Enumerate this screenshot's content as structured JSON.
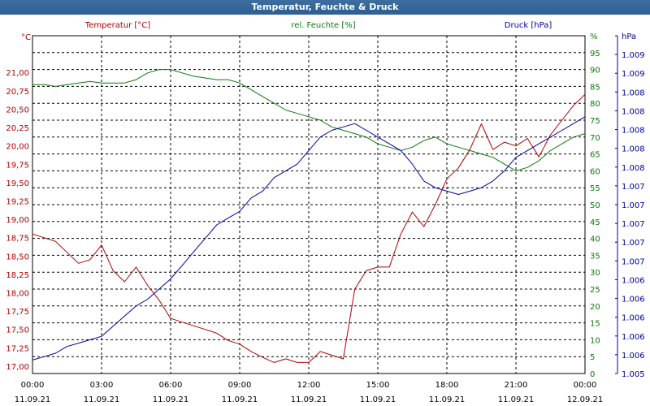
{
  "window": {
    "title": "Temperatur, Feuchte & Druck"
  },
  "colors": {
    "temperature": "#b00000",
    "humidity": "#0a7a0a",
    "pressure": "#0000a0",
    "grid": "#000000"
  },
  "chart_data": {
    "type": "line",
    "title": "Temperatur, Feuchte & Druck",
    "grid": true,
    "x_ticks": [
      {
        "time": "00:00",
        "date": "11.09.21"
      },
      {
        "time": "03:00",
        "date": "11.09.21"
      },
      {
        "time": "06:00",
        "date": "11.09.21"
      },
      {
        "time": "09:00",
        "date": "11.09.21"
      },
      {
        "time": "12:00",
        "date": "11.09.21"
      },
      {
        "time": "15:00",
        "date": "11.09.21"
      },
      {
        "time": "18:00",
        "date": "11.09.21"
      },
      {
        "time": "21:00",
        "date": "11.09.21"
      },
      {
        "time": "00:00",
        "date": "12.09.21"
      }
    ],
    "x_hours": [
      0,
      0.5,
      1,
      1.5,
      2,
      2.5,
      3,
      3.5,
      4,
      4.5,
      5,
      5.5,
      6,
      6.5,
      7,
      7.5,
      8,
      8.5,
      9,
      9.5,
      10,
      10.5,
      11,
      11.5,
      12,
      12.5,
      13,
      13.5,
      14,
      14.5,
      15,
      15.5,
      16,
      16.5,
      17,
      17.5,
      18,
      18.5,
      19,
      19.5,
      20,
      20.5,
      21,
      21.5,
      22,
      22.5,
      23,
      23.5,
      24
    ],
    "axes": {
      "temperature": {
        "label": "Temperatur [°C]",
        "unit": "°C",
        "ylim": [
          16.9,
          21.5
        ],
        "ticks": [
          {
            "v": 17.0,
            "t": "17,00"
          },
          {
            "v": 17.25,
            "t": "17,25"
          },
          {
            "v": 17.5,
            "t": "17,50"
          },
          {
            "v": 17.75,
            "t": "17,75"
          },
          {
            "v": 18.0,
            "t": "18,00"
          },
          {
            "v": 18.25,
            "t": "18,25"
          },
          {
            "v": 18.5,
            "t": "18,50"
          },
          {
            "v": 18.75,
            "t": "18,75"
          },
          {
            "v": 19.0,
            "t": "19,00"
          },
          {
            "v": 19.25,
            "t": "19,25"
          },
          {
            "v": 19.5,
            "t": "19,50"
          },
          {
            "v": 19.75,
            "t": "19,75"
          },
          {
            "v": 20.0,
            "t": "20,00"
          },
          {
            "v": 20.25,
            "t": "20,25"
          },
          {
            "v": 20.5,
            "t": "20,50"
          },
          {
            "v": 20.75,
            "t": "20,75"
          },
          {
            "v": 21.0,
            "t": "21,00"
          }
        ]
      },
      "humidity": {
        "label": "rel. Feuchte [%]",
        "unit": "%",
        "ylim": [
          0,
          100
        ],
        "ticks": [
          {
            "v": 0,
            "t": "0"
          },
          {
            "v": 5,
            "t": "5"
          },
          {
            "v": 10,
            "t": "10"
          },
          {
            "v": 15,
            "t": "15"
          },
          {
            "v": 20,
            "t": "20"
          },
          {
            "v": 25,
            "t": "25"
          },
          {
            "v": 30,
            "t": "30"
          },
          {
            "v": 35,
            "t": "35"
          },
          {
            "v": 40,
            "t": "40"
          },
          {
            "v": 45,
            "t": "45"
          },
          {
            "v": 50,
            "t": "50"
          },
          {
            "v": 55,
            "t": "55"
          },
          {
            "v": 60,
            "t": "60"
          },
          {
            "v": 65,
            "t": "65"
          },
          {
            "v": 70,
            "t": "70"
          },
          {
            "v": 75,
            "t": "75"
          },
          {
            "v": 80,
            "t": "80"
          },
          {
            "v": 85,
            "t": "85"
          },
          {
            "v": 90,
            "t": "90"
          },
          {
            "v": 95,
            "t": "95"
          },
          {
            "v": 100,
            "t": "%"
          }
        ]
      },
      "pressure": {
        "label": "Druck [hPa]",
        "unit": "hPa",
        "ylim": [
          0,
          1
        ],
        "ticks": [
          {
            "v": 0.0,
            "t": "1.005"
          },
          {
            "v": 0.0556,
            "t": "1.006"
          },
          {
            "v": 0.1111,
            "t": "1.006"
          },
          {
            "v": 0.1667,
            "t": "1.006"
          },
          {
            "v": 0.2222,
            "t": "1.006"
          },
          {
            "v": 0.2778,
            "t": "1.006"
          },
          {
            "v": 0.3333,
            "t": "1.007"
          },
          {
            "v": 0.3889,
            "t": "1.007"
          },
          {
            "v": 0.4444,
            "t": "1.007"
          },
          {
            "v": 0.5,
            "t": "1.007"
          },
          {
            "v": 0.5556,
            "t": "1.007"
          },
          {
            "v": 0.6111,
            "t": "1.008"
          },
          {
            "v": 0.6667,
            "t": "1.008"
          },
          {
            "v": 0.7222,
            "t": "1.008"
          },
          {
            "v": 0.7778,
            "t": "1.008"
          },
          {
            "v": 0.8333,
            "t": "1.008"
          },
          {
            "v": 0.8889,
            "t": "1.009"
          },
          {
            "v": 0.9444,
            "t": "1.009"
          },
          {
            "v": 1.0,
            "t": "hPa"
          }
        ]
      }
    },
    "series": [
      {
        "name": "Temperatur [°C]",
        "axis": "temperature",
        "color": "#b00000",
        "values": [
          18.8,
          18.75,
          18.7,
          18.55,
          18.4,
          18.45,
          18.65,
          18.3,
          18.15,
          18.35,
          18.1,
          17.9,
          17.65,
          17.6,
          17.55,
          17.5,
          17.45,
          17.35,
          17.3,
          17.2,
          17.12,
          17.05,
          17.1,
          17.05,
          17.05,
          17.2,
          17.15,
          17.1,
          18.05,
          18.3,
          18.35,
          18.35,
          18.8,
          19.1,
          18.9,
          19.2,
          19.55,
          19.7,
          19.95,
          20.3,
          19.95,
          20.05,
          20.0,
          20.1,
          19.85,
          20.15,
          20.35,
          20.55,
          20.7
        ]
      },
      {
        "name": "rel. Feuchte [%]",
        "axis": "humidity",
        "color": "#0a7a0a",
        "values": [
          85.5,
          85.5,
          85,
          85.5,
          86,
          86.5,
          86,
          86,
          86,
          87,
          89,
          90,
          90,
          89,
          88,
          87.5,
          87,
          87,
          86,
          84,
          82,
          80,
          78,
          77,
          76,
          75,
          73,
          72,
          71,
          70,
          68,
          67,
          66,
          67,
          69,
          70,
          68,
          67,
          66,
          65,
          64,
          62,
          60,
          61,
          63,
          66,
          68,
          70,
          71
        ]
      },
      {
        "name": "Druck [hPa]",
        "axis": "pressure",
        "color": "#0000a0",
        "values": [
          0.04,
          0.05,
          0.06,
          0.08,
          0.09,
          0.1,
          0.11,
          0.14,
          0.17,
          0.2,
          0.22,
          0.25,
          0.28,
          0.32,
          0.36,
          0.4,
          0.44,
          0.46,
          0.48,
          0.52,
          0.54,
          0.58,
          0.6,
          0.62,
          0.66,
          0.7,
          0.72,
          0.73,
          0.74,
          0.72,
          0.7,
          0.68,
          0.66,
          0.62,
          0.57,
          0.55,
          0.54,
          0.53,
          0.54,
          0.55,
          0.57,
          0.6,
          0.64,
          0.66,
          0.68,
          0.7,
          0.72,
          0.74,
          0.76
        ]
      }
    ]
  }
}
